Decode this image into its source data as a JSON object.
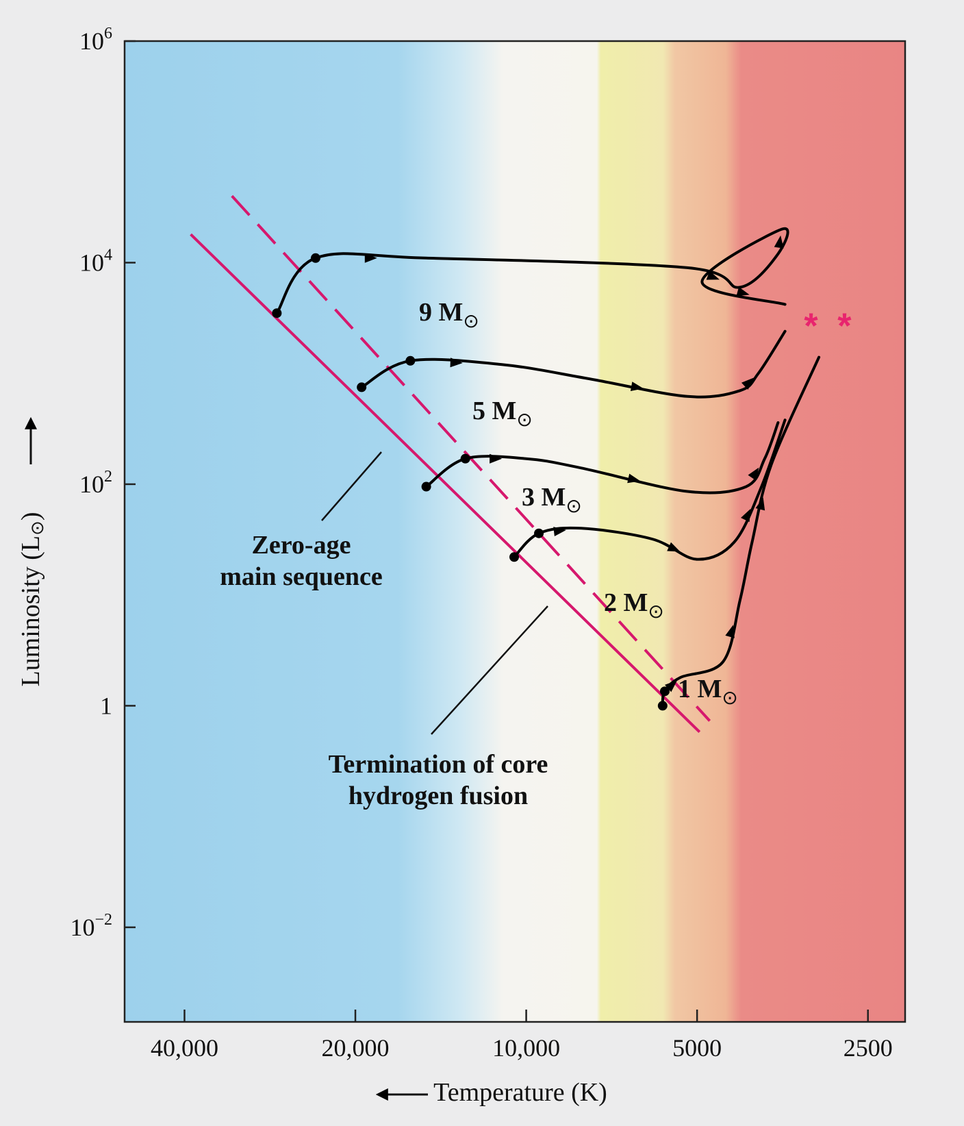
{
  "chart_data": {
    "type": "line",
    "title": "",
    "xlabel": "Temperature (K)",
    "ylabel": "Luminosity (L",
    "ylabel_sub": "⊙",
    "ylabel_close": ")",
    "x_scale": "log",
    "x_reversed": true,
    "y_scale": "log",
    "xlim": [
      51000,
      2150
    ],
    "ylim": [
      0.0014,
      1000000
    ],
    "x_ticks": [
      {
        "value": 40000,
        "label": "40,000"
      },
      {
        "value": 20000,
        "label": "20,000"
      },
      {
        "value": 10000,
        "label": "10,000"
      },
      {
        "value": 5000,
        "label": "5000"
      },
      {
        "value": 2500,
        "label": "2500"
      }
    ],
    "y_ticks": [
      {
        "value": 1000000,
        "base": "10",
        "exp": "6"
      },
      {
        "value": 10000,
        "base": "10",
        "exp": "4"
      },
      {
        "value": 100,
        "base": "10",
        "exp": "2"
      },
      {
        "value": 1,
        "base": "1",
        "exp": ""
      },
      {
        "value": 0.01,
        "base": "10",
        "exp": "−2"
      }
    ],
    "background_bands": [
      {
        "from": 51000,
        "to": 11500,
        "color": "#9dd1ec"
      },
      {
        "from": 11500,
        "to": 6100,
        "color": "#f5f4f0"
      },
      {
        "from": 6100,
        "to": 4950,
        "color": "#f0eeaa"
      },
      {
        "from": 4950,
        "to": 3900,
        "color": "#f1c7a4"
      },
      {
        "from": 3900,
        "to": 2150,
        "color": "#ea8b87"
      }
    ],
    "zams_line": {
      "color": "#d6186d",
      "points": [
        [
          39000,
          18000
        ],
        [
          4950,
          0.58
        ]
      ]
    },
    "tams_line": {
      "color": "#d6186d",
      "style": "dashed",
      "points": [
        [
          33000,
          40000
        ],
        [
          4750,
          0.73
        ]
      ]
    },
    "series": [
      {
        "label": "9 M",
        "label_sub": "⊙",
        "points": [
          [
            27500,
            3500
          ],
          [
            23500,
            11000
          ],
          [
            15000,
            11000
          ],
          [
            5200,
            9000
          ],
          [
            4200,
            6000
          ],
          [
            3600,
            12000
          ],
          [
            3550,
            20000
          ],
          [
            4900,
            6700
          ],
          [
            3500,
            4200
          ]
        ]
      },
      {
        "label": "5 M",
        "label_sub": "⊙",
        "points": [
          [
            19500,
            750
          ],
          [
            16000,
            1300
          ],
          [
            11000,
            1200
          ],
          [
            7800,
            900
          ],
          [
            5200,
            620
          ],
          [
            4200,
            700
          ],
          [
            3900,
            1000
          ],
          [
            3500,
            2400
          ]
        ]
      },
      {
        "label": "3 M",
        "label_sub": "⊙",
        "points": [
          [
            15000,
            95
          ],
          [
            12800,
            170
          ],
          [
            10000,
            170
          ],
          [
            8000,
            140
          ],
          [
            5200,
            86
          ],
          [
            4100,
            95
          ],
          [
            3800,
            170
          ],
          [
            3600,
            360
          ]
        ]
      },
      {
        "label": "2 M",
        "label_sub": "⊙",
        "points": [
          [
            10500,
            22
          ],
          [
            9500,
            36
          ],
          [
            8000,
            40
          ],
          [
            6000,
            32
          ],
          [
            5000,
            21
          ],
          [
            4300,
            30
          ],
          [
            3850,
            95
          ],
          [
            3500,
            380
          ]
        ]
      },
      {
        "label": "1 M",
        "label_sub": "⊙",
        "points": [
          [
            5750,
            1.0
          ],
          [
            5700,
            1.35
          ],
          [
            5350,
            1.8
          ],
          [
            4500,
            2.5
          ],
          [
            4200,
            9
          ],
          [
            4000,
            30
          ],
          [
            3700,
            150
          ],
          [
            3050,
            1400
          ]
        ]
      }
    ],
    "markers": [
      {
        "symbol": "*",
        "color": "#e8246e",
        "x": 3150,
        "y": 2700
      },
      {
        "symbol": "*",
        "color": "#e8246e",
        "x": 2750,
        "y": 2700
      }
    ],
    "annotations": [
      {
        "lines": [
          "Zero-age",
          "main sequence"
        ]
      },
      {
        "lines": [
          "Termination of core",
          "hydrogen fusion"
        ]
      }
    ],
    "legend": "none",
    "grid": false
  }
}
